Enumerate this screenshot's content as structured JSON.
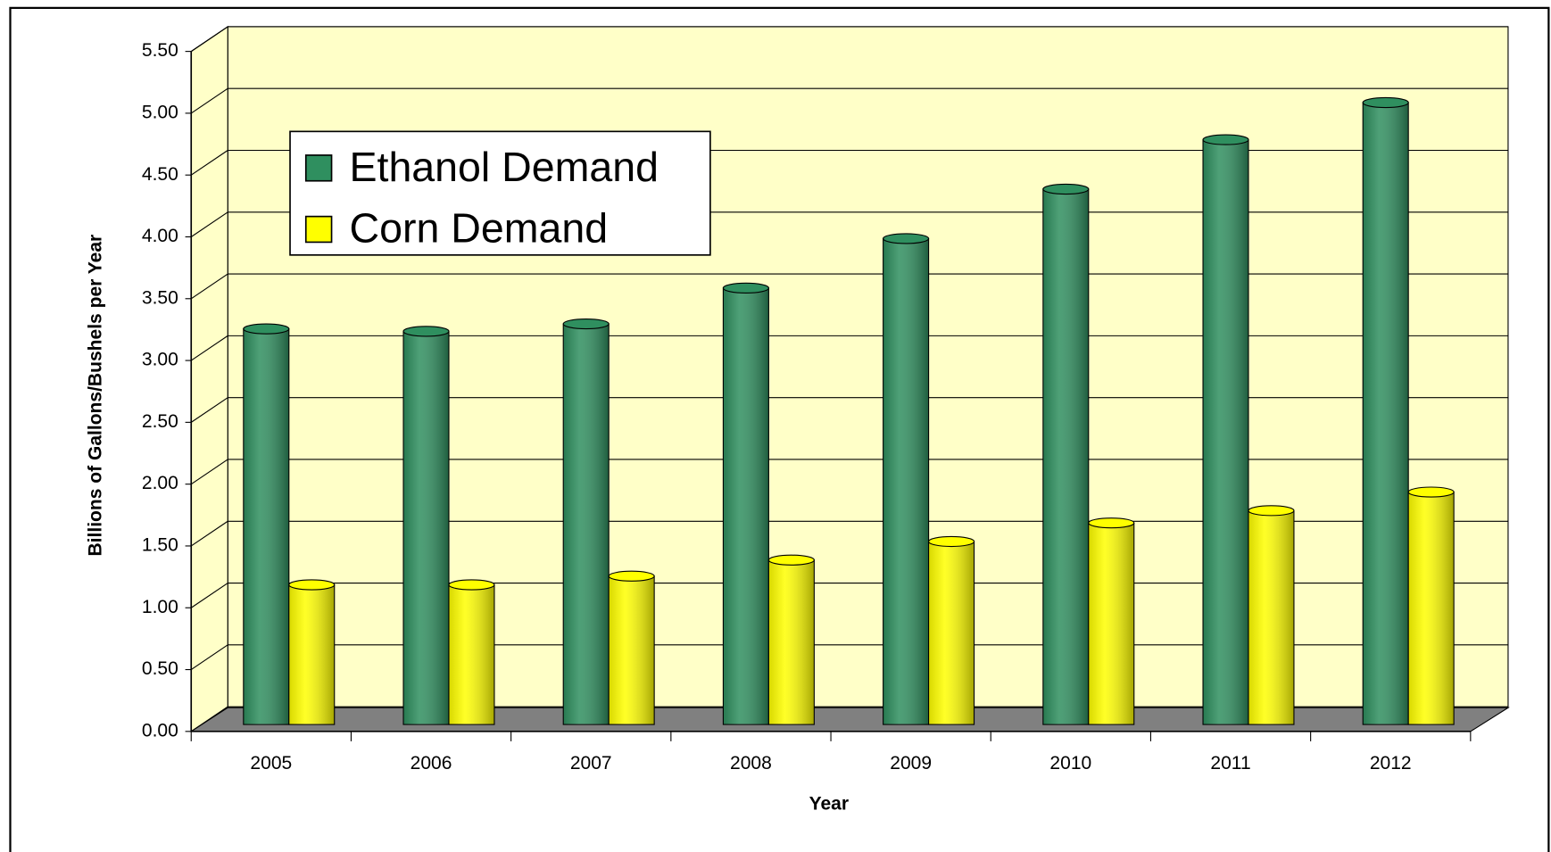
{
  "chart_data": {
    "type": "bar",
    "x_label": "Year",
    "y_label": "Billions of Gallons/Bushels per Year",
    "categories": [
      "2005",
      "2006",
      "2007",
      "2008",
      "2009",
      "2010",
      "2011",
      "2012"
    ],
    "series": [
      {
        "name": "Ethanol Demand",
        "color": "#2f8f5f",
        "values": [
          3.2,
          3.18,
          3.24,
          3.53,
          3.93,
          4.33,
          4.73,
          5.03
        ]
      },
      {
        "name": "Corn Demand",
        "color": "#ffff00",
        "values": [
          1.13,
          1.13,
          1.2,
          1.33,
          1.48,
          1.63,
          1.73,
          1.88
        ]
      }
    ],
    "ylim": [
      0,
      5.5
    ],
    "yticks": [
      {
        "value": 0,
        "label": "0.00"
      },
      {
        "value": 0.5,
        "label": "0.50"
      },
      {
        "value": 1,
        "label": "1.00"
      },
      {
        "value": 1.5,
        "label": "1.50"
      },
      {
        "value": 2,
        "label": "2.00"
      },
      {
        "value": 2.5,
        "label": "2.50"
      },
      {
        "value": 3,
        "label": "3.00"
      },
      {
        "value": 3.5,
        "label": "3.50"
      },
      {
        "value": 4,
        "label": "4.00"
      },
      {
        "value": 4.5,
        "label": "4.50"
      },
      {
        "value": 5,
        "label": "5.00"
      },
      {
        "value": 5.5,
        "label": "5.50"
      }
    ],
    "grid": true,
    "legend": "upper left"
  }
}
